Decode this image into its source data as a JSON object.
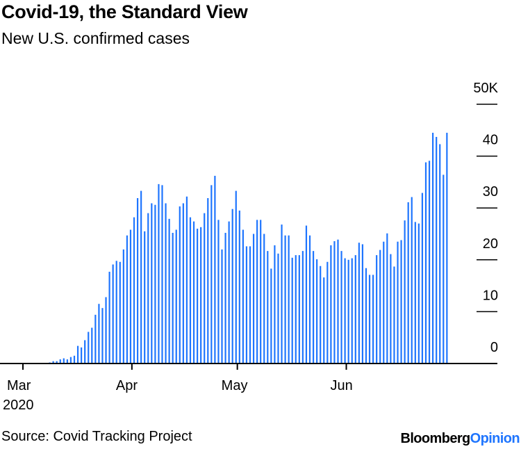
{
  "chart_data": {
    "type": "bar",
    "title": "Covid-19, the Standard View",
    "subtitle": "New U.S. confirmed cases",
    "xlabel": "",
    "ylabel": "",
    "unit": "thousands",
    "ylim": [
      0,
      50
    ],
    "yticks": [
      {
        "value": 0,
        "label": "0"
      },
      {
        "value": 10,
        "label": "10"
      },
      {
        "value": 20,
        "label": "20"
      },
      {
        "value": 30,
        "label": "30"
      },
      {
        "value": 40,
        "label": "40"
      },
      {
        "value": 50,
        "label": "50K"
      }
    ],
    "xticks": [
      {
        "day_index": 0,
        "label": "Mar",
        "sublabel": "2020"
      },
      {
        "day_index": 31,
        "label": "Apr"
      },
      {
        "day_index": 61,
        "label": "May"
      },
      {
        "day_index": 92,
        "label": "Jun"
      }
    ],
    "x_start": "2020-03-01",
    "x_end": "2020-06-30",
    "bar_color": "#1f75fe",
    "values": [
      0,
      0,
      0,
      0.1,
      0.1,
      0.1,
      0.1,
      0.1,
      0.2,
      0.45,
      0.45,
      0.8,
      1.0,
      0.8,
      1.25,
      1.5,
      3.4,
      3.1,
      4.5,
      6.1,
      6.9,
      9.4,
      11.5,
      10.7,
      12.8,
      17.7,
      19.1,
      19.8,
      19.6,
      22.0,
      24.7,
      25.8,
      28.2,
      31.9,
      33.3,
      25.5,
      29.0,
      30.9,
      30.6,
      34.6,
      34.4,
      30.9,
      27.9,
      25.2,
      25.8,
      30.3,
      30.9,
      32.2,
      28.2,
      27.4,
      26.0,
      26.3,
      29.0,
      31.9,
      34.4,
      36.2,
      27.7,
      22.0,
      25.2,
      27.4,
      29.8,
      33.3,
      29.5,
      25.8,
      22.6,
      22.6,
      25.0,
      27.7,
      27.7,
      25.0,
      21.7,
      18.3,
      22.8,
      21.2,
      26.8,
      24.7,
      24.7,
      20.4,
      20.9,
      20.9,
      21.7,
      26.6,
      24.7,
      21.7,
      20.1,
      18.8,
      16.6,
      19.6,
      22.8,
      23.6,
      23.9,
      21.7,
      20.3,
      20.0,
      20.3,
      20.9,
      23.3,
      23.0,
      18.4,
      17.1,
      17.1,
      20.9,
      21.9,
      23.5,
      25.1,
      21.1,
      18.7,
      23.5,
      23.8,
      27.6,
      31.1,
      32.1,
      27.3,
      27.0,
      32.9,
      38.8,
      39.1,
      44.5,
      43.7,
      42.3,
      36.4,
      44.5
    ]
  },
  "footer": {
    "source": "Source: Covid Tracking Project",
    "logo_part1": "Bloomberg",
    "logo_part2": "Opinion"
  }
}
